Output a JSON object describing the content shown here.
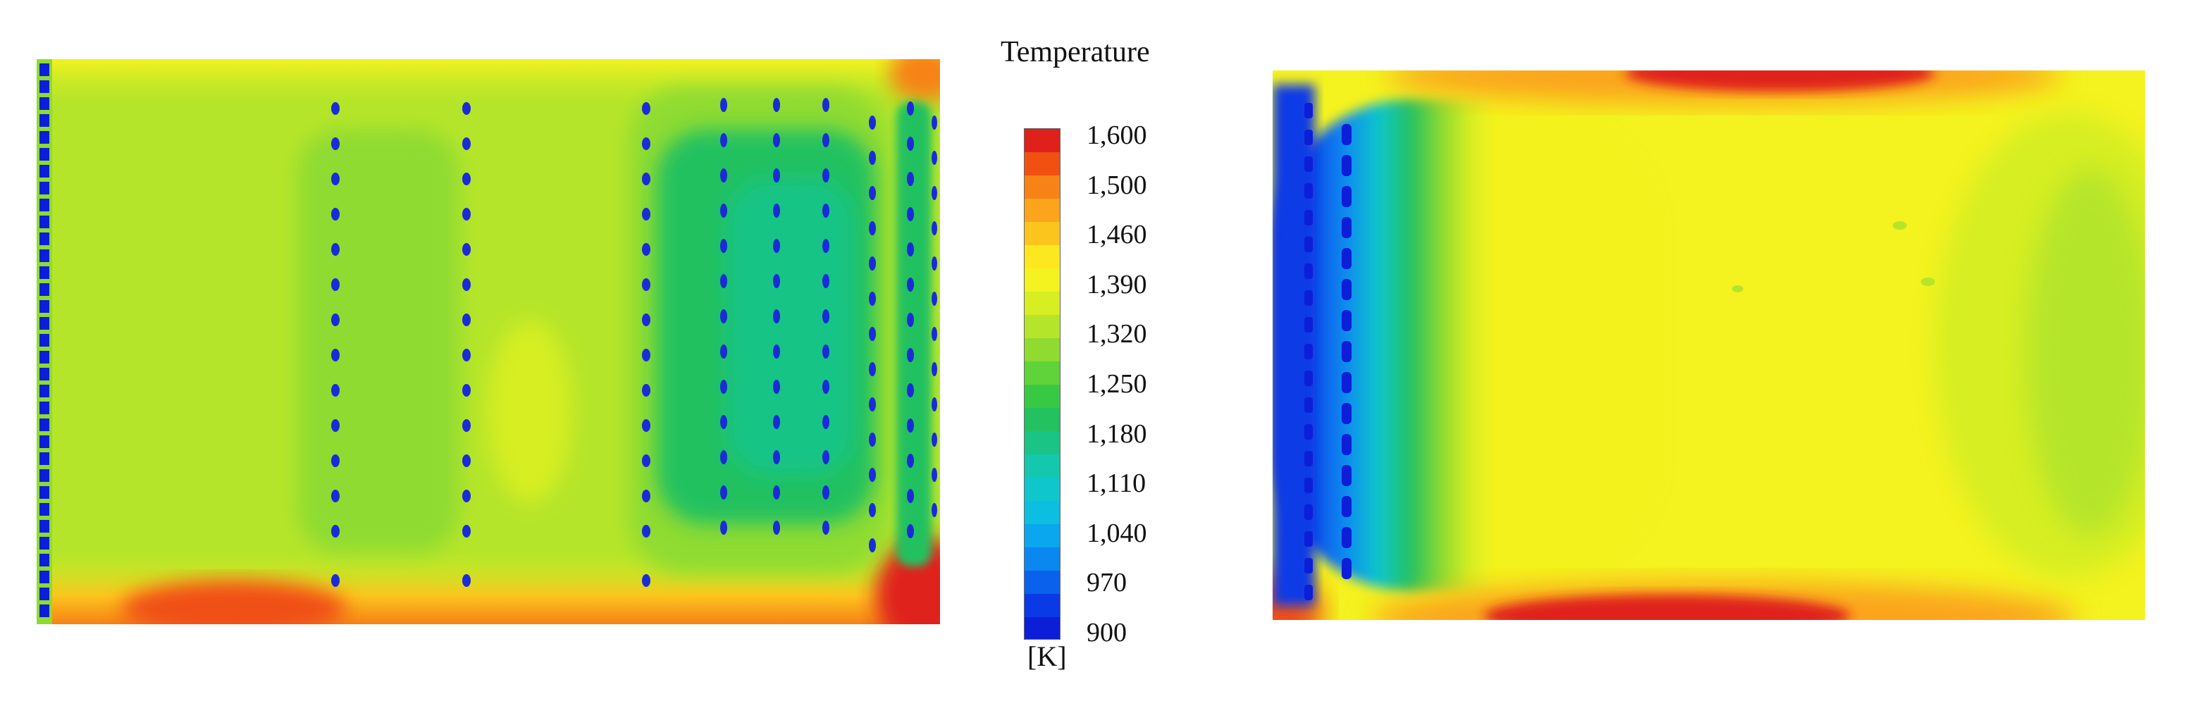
{
  "legend": {
    "title": "Temperature",
    "unit": "[K]",
    "ticks": [
      "1,600",
      "1,500",
      "1,460",
      "1,390",
      "1,320",
      "1,250",
      "1,180",
      "1,110",
      "1,040",
      "970",
      "900"
    ],
    "band_colors": [
      "#e0201a",
      "#f05012",
      "#f78216",
      "#fba41c",
      "#fcc51e",
      "#fde820",
      "#f4f21f",
      "#d6ee22",
      "#b5e52a",
      "#8fdb30",
      "#5fd339",
      "#38c944",
      "#23c160",
      "#19c486",
      "#13c8ad",
      "#0fc6cc",
      "#0cbedf",
      "#0aa6ee",
      "#0a88f0",
      "#0a62ec",
      "#0a3ae6",
      "#0d1ed8"
    ]
  },
  "colors": {
    "panel_bg": "#f4f21f",
    "warm_zone": "#fcc51e",
    "cool_zone_1": "#8fdb30",
    "cool_zone_2": "#38c944",
    "cool_zone_3": "#19c486",
    "cold_zone": "#0aa6ee",
    "coldest": "#0d1ed8",
    "hot_zone": "#e0201a",
    "orange_zone": "#f78216"
  }
}
